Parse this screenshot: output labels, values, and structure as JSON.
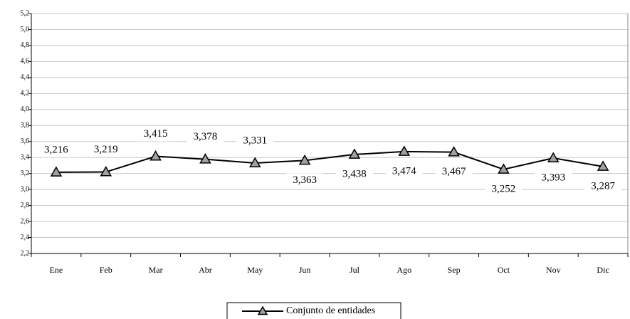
{
  "chart_data": {
    "type": "line",
    "categories": [
      "Ene",
      "Feb",
      "Mar",
      "Abr",
      "May",
      "Jun",
      "Jul",
      "Ago",
      "Sep",
      "Oct",
      "Nov",
      "Dic"
    ],
    "series": [
      {
        "name": "Conjunto de entidades",
        "color": "#000000",
        "marker_color": "#a0a0a0",
        "values": [
          3.216,
          3.219,
          3.415,
          3.378,
          3.331,
          3.363,
          3.438,
          3.474,
          3.467,
          3.252,
          3.393,
          3.287
        ],
        "value_labels": [
          "3,216",
          "3,219",
          "3,415",
          "3,378",
          "3,331",
          "3,363",
          "3,438",
          "3,474",
          "3,467",
          "3,252",
          "3,393",
          "3,287"
        ]
      }
    ],
    "ylim": [
      2.2,
      5.2
    ],
    "yticks": [
      {
        "value": 2.2,
        "label": "2,2"
      },
      {
        "value": 2.4,
        "label": "2,4"
      },
      {
        "value": 2.6,
        "label": "2,6"
      },
      {
        "value": 2.8,
        "label": "2,8"
      },
      {
        "value": 3.0,
        "label": "3,0"
      },
      {
        "value": 3.2,
        "label": "3,2"
      },
      {
        "value": 3.4,
        "label": "3,4"
      },
      {
        "value": 3.6,
        "label": "3,6"
      },
      {
        "value": 3.8,
        "label": "3,8"
      },
      {
        "value": 4.0,
        "label": "4,0"
      },
      {
        "value": 4.2,
        "label": "4,2"
      },
      {
        "value": 4.4,
        "label": "4,4"
      },
      {
        "value": 4.6,
        "label": "4,6"
      },
      {
        "value": 4.8,
        "label": "4,8"
      },
      {
        "value": 5.0,
        "label": "5,0"
      },
      {
        "value": 5.2,
        "label": "5,2"
      }
    ],
    "grid": true,
    "legend": "bottom"
  }
}
